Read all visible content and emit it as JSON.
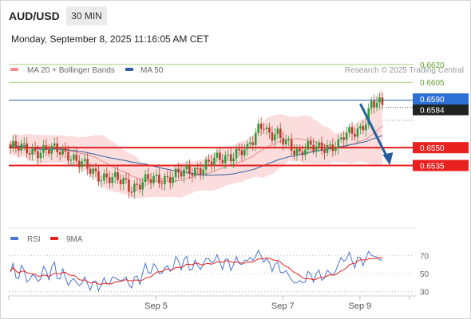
{
  "header": {
    "symbol": "AUD/USD",
    "timeframe": "30 MIN",
    "datetime": "Monday, September 8, 2025 11:16:05 AM CET"
  },
  "colors": {
    "candle_up": "#2e9c3a",
    "candle_down": "#c0392b",
    "ma20": "#f08c8c",
    "bollinger_fill": "#f9d2d2",
    "ma50": "#2f5f9e",
    "support": "#e8201e",
    "target_line": "#a6d07a",
    "current_label": "#2e6fd6",
    "arrow": "#245d9e",
    "rsi": "#4a74d0",
    "rsi_ma": "#e8201e"
  },
  "chart_data": [
    {
      "type": "candlestick",
      "legend": [
        {
          "name": "MA 20 + Bollinger Bands",
          "color": "#f08c8c"
        },
        {
          "name": "MA 50",
          "color": "#2f5f9e"
        }
      ],
      "legend_placement": "top-left",
      "credit": "Research © 2025 Trading Central",
      "y_axis": "right",
      "ylim": [
        0.6485,
        0.663
      ],
      "x_tick_labels": [
        "Sep 5",
        "Sep 7",
        "Sep 9"
      ],
      "levels": [
        {
          "value": 0.662,
          "label": "0.6620",
          "kind": "target"
        },
        {
          "value": 0.6605,
          "label": "0.6605",
          "kind": "target"
        },
        {
          "value": 0.659,
          "label": "0.6590",
          "kind": "pivot"
        },
        {
          "value": 0.655,
          "label": "0.6550",
          "kind": "support"
        },
        {
          "value": 0.6535,
          "label": "0.6535",
          "kind": "support"
        }
      ],
      "current_price": {
        "value": 0.6584,
        "label": "0.6584"
      },
      "arrow": {
        "from_bar": 127,
        "from_value": 0.6587,
        "to_bar": 133,
        "to_value": 0.6536
      }
    },
    {
      "type": "line",
      "series": [
        {
          "name": "RSI",
          "color": "#4a74d0"
        },
        {
          "name": "9MA",
          "color": "#e8201e"
        }
      ],
      "legend_placement": "top-left",
      "ylim": [
        20,
        80
      ],
      "y_tick_labels": [
        "70",
        "50",
        "30"
      ],
      "y_ticks": [
        70,
        50,
        30
      ]
    }
  ]
}
